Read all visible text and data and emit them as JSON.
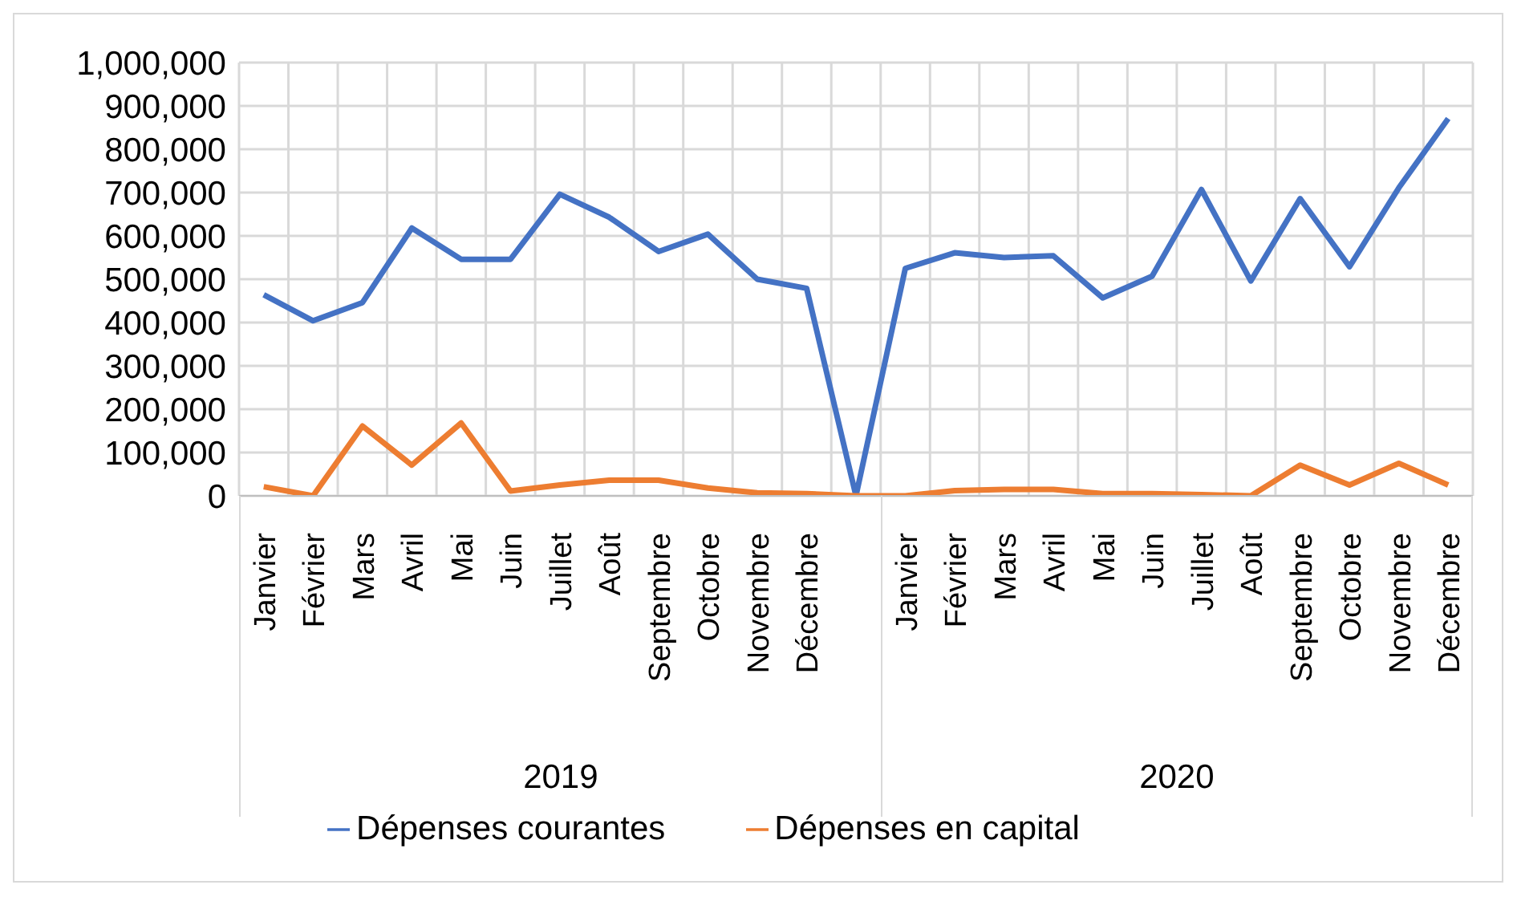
{
  "chart_data": {
    "type": "line",
    "categories": [
      "Janvier",
      "Février",
      "Mars",
      "Avril",
      "Mai",
      "Juin",
      "Juillet",
      "Août",
      "Septembre",
      "Octobre",
      "Novembre",
      "Décembre",
      null,
      "Janvier",
      "Février",
      "Mars",
      "Avril",
      "Mai",
      "Juin",
      "Juillet",
      "Août",
      "Septembre",
      "Octobre",
      "Novembre",
      "Décembre"
    ],
    "series": [
      {
        "name": "Dépenses courantes",
        "color": "#4472c4",
        "values": [
          464000,
          404000,
          446000,
          618000,
          546000,
          546000,
          696000,
          643000,
          564000,
          604000,
          500000,
          479000,
          0,
          525000,
          561000,
          550000,
          554000,
          457000,
          507000,
          707000,
          496000,
          686000,
          529000,
          711000,
          871000
        ]
      },
      {
        "name": "Dépenses en capital",
        "color": "#ed7d31",
        "values": [
          21000,
          0,
          161000,
          71000,
          168000,
          11000,
          25000,
          36000,
          36000,
          18000,
          7000,
          5000,
          0,
          0,
          12000,
          15000,
          15000,
          5000,
          5000,
          3000,
          0,
          71000,
          25000,
          75000,
          25000
        ]
      }
    ],
    "ylim": [
      0,
      1000000
    ],
    "yticks": [
      0,
      {
        "value": 100000,
        "label": "100,000"
      },
      {
        "value": 200000,
        "label": "200,000"
      },
      {
        "value": 300000,
        "label": "300,000"
      },
      {
        "value": 400000,
        "label": "400,000"
      },
      {
        "value": 500000,
        "label": "500,000"
      },
      {
        "value": 600000,
        "label": "600,000"
      },
      {
        "value": 700000,
        "label": "700,000"
      },
      {
        "value": 800000,
        "label": "800,000"
      },
      {
        "value": 900000,
        "label": "900,000"
      },
      {
        "value": 1000000,
        "label": "1,000,000"
      }
    ],
    "annotations": [
      "2019",
      "2020"
    ],
    "grid": true,
    "legend": "bottom",
    "marker": "none",
    "line_style": "solid"
  }
}
